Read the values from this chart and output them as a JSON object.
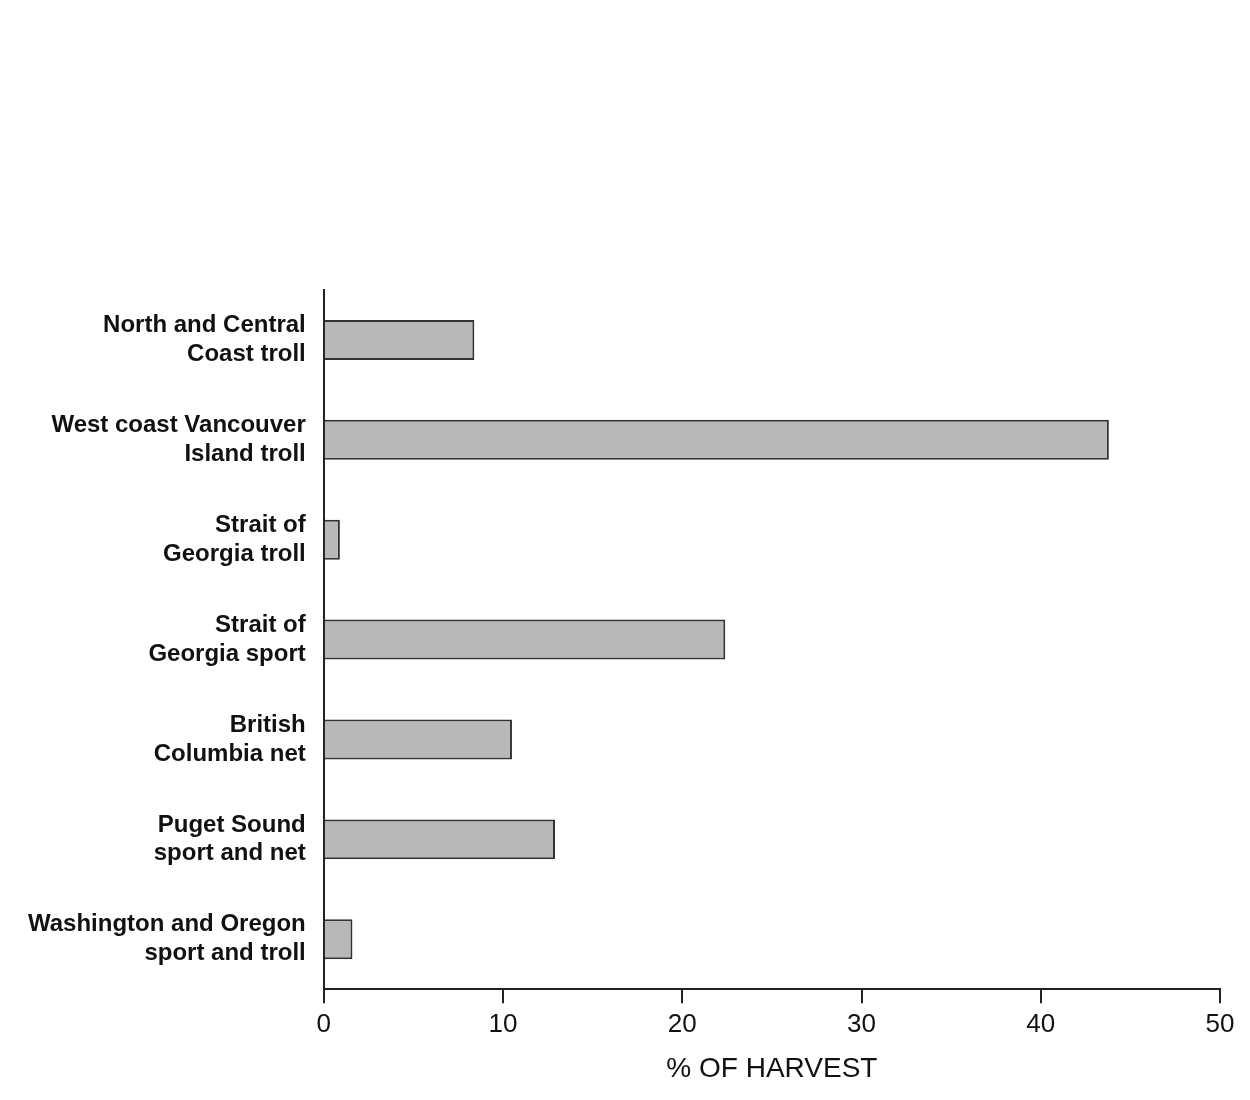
{
  "chart_data": {
    "type": "bar",
    "orientation": "horizontal",
    "xlabel": "% OF HARVEST",
    "categories": [
      "North and Central Coast troll",
      "West coast Vancouver Island troll",
      "Strait of Georgia troll",
      "Strait of Georgia sport",
      "British Columbia net",
      "Puget Sound sport and net",
      "Washington and Oregon sport and troll"
    ],
    "values": [
      8.4,
      43.8,
      0.9,
      22.4,
      10.5,
      12.9,
      1.6
    ],
    "color": "#b8b8b8",
    "xlim": [
      0,
      50
    ],
    "xticks": [
      0,
      10,
      20,
      30,
      40,
      50
    ],
    "grid": false,
    "legend": false
  }
}
